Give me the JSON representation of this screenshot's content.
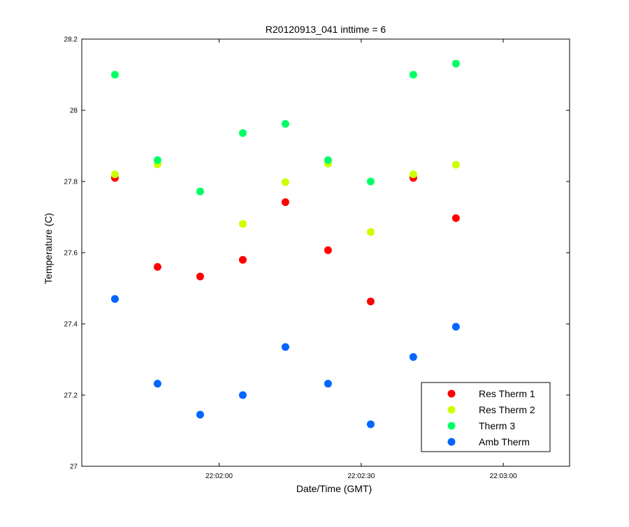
{
  "chart_data": {
    "type": "scatter",
    "title": "R20120913_041 inttime = 6",
    "xlabel": "Date/Time (GMT)",
    "ylabel": "Temperature (C)",
    "xlim": [
      "22:01:31",
      "22:03:14"
    ],
    "ylim": [
      27,
      28.2
    ],
    "x_ticks": [
      "22:02:00",
      "22:02:30",
      "22:03:00"
    ],
    "y_ticks": [
      "27",
      "27.2",
      "27.4",
      "27.6",
      "27.8",
      "28",
      "28.2"
    ],
    "grid": false,
    "legend_position": "bottom-right",
    "x": [
      "22:01:38",
      "22:01:47",
      "22:01:56",
      "22:02:05",
      "22:02:14",
      "22:02:23",
      "22:02:32",
      "22:02:41",
      "22:02:50"
    ],
    "series": [
      {
        "name": "Res Therm 1",
        "color": "#ff0000",
        "values": [
          27.81,
          27.56,
          27.533,
          27.58,
          27.742,
          27.607,
          27.463,
          27.81,
          27.697
        ]
      },
      {
        "name": "Res Therm 2",
        "color": "#ccff00",
        "values": [
          27.82,
          27.848,
          27.772,
          27.681,
          27.798,
          27.85,
          27.658,
          27.82,
          27.847
        ]
      },
      {
        "name": "Therm 3",
        "color": "#00ff66",
        "values": [
          28.1,
          27.86,
          27.772,
          27.936,
          27.962,
          27.86,
          27.8,
          28.1,
          28.131
        ]
      },
      {
        "name": "Amb Therm",
        "color": "#0066ff",
        "values": [
          27.47,
          27.232,
          27.145,
          27.2,
          27.335,
          27.232,
          27.118,
          27.307,
          27.392
        ]
      }
    ]
  }
}
